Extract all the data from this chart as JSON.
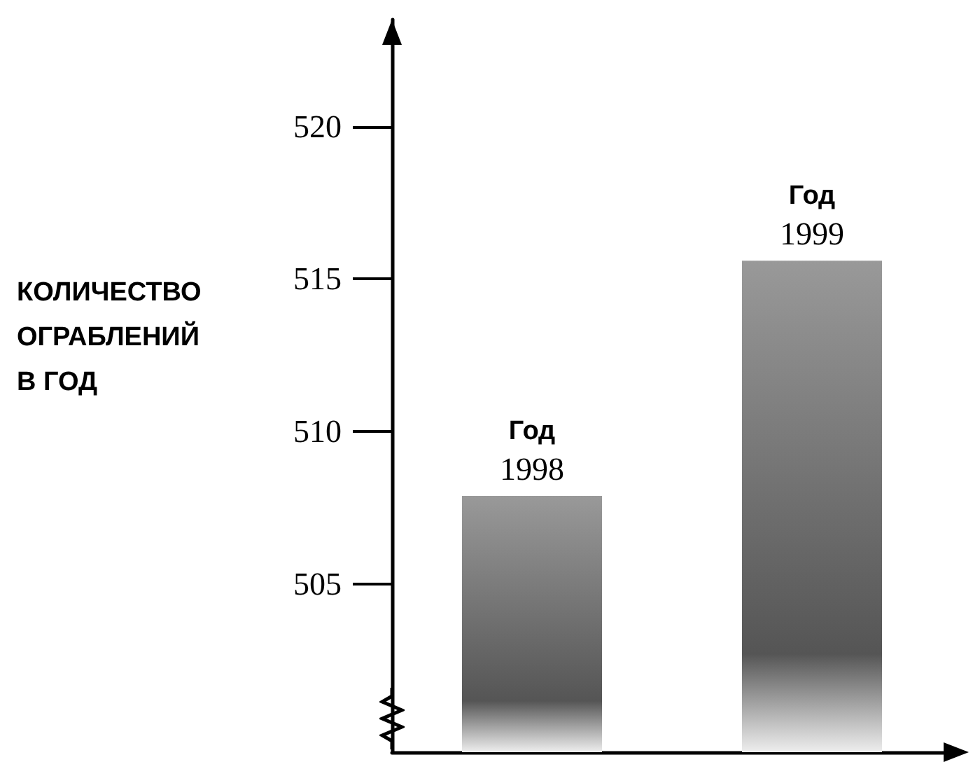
{
  "chart_data": {
    "type": "bar",
    "ylabel": "КОЛИЧЕСТВО\nОГРАБЛЕНИЙ\nВ ГОД",
    "categories": [
      "Год\n1998",
      "Год\n1999"
    ],
    "values": [
      507.9,
      515.6
    ],
    "color": "#999999",
    "ylim": [
      499.5,
      523.5
    ],
    "yticks": [
      505,
      510,
      515,
      520
    ],
    "grid": false,
    "tick_labels": "y"
  }
}
